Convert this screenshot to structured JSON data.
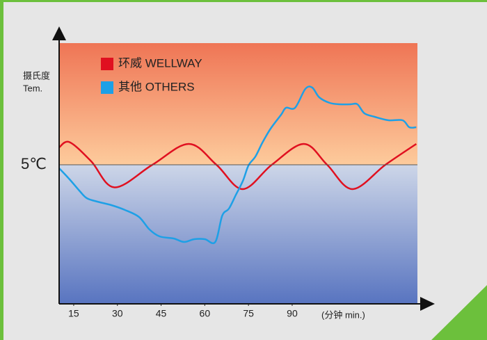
{
  "chart_data": {
    "type": "line",
    "ylabel_cn": "摄氏度",
    "ylabel": "Tem.",
    "xlabel": "(分钟 min.)",
    "xlim": [
      10,
      133
    ],
    "xticks": [
      15,
      30,
      45,
      60,
      75,
      90
    ],
    "ylim": [
      -3,
      12
    ],
    "yticks": [
      {
        "value": 5,
        "label": "5℃"
      }
    ],
    "grid": true,
    "series": [
      {
        "name": "环威 WELLWAY",
        "color": "#e01020",
        "x": [
          10,
          13.6,
          21,
          29,
          42,
          54.5,
          64,
          73,
          83,
          94,
          102,
          110.7,
          122,
          132.6
        ],
        "values": [
          6.0,
          6.3,
          5.2,
          3.7,
          5.0,
          6.2,
          5.0,
          3.6,
          5.0,
          6.2,
          5.0,
          3.6,
          5.0,
          6.2
        ]
      },
      {
        "name": "其他 OTHERS",
        "color": "#1ea0e6",
        "x": [
          10,
          13.6,
          17.1,
          19.5,
          23.1,
          27.9,
          32.6,
          37.4,
          41.0,
          44.5,
          49.3,
          52.9,
          56.4,
          60.0,
          63.6,
          66.0,
          68.3,
          70.7,
          73.1,
          75.0,
          77.4,
          79.8,
          82.6,
          86.2,
          87.9,
          91.0,
          94.5,
          96.9,
          99.3,
          102.9,
          106.4,
          110.0,
          112.4,
          114.8,
          118.3,
          123.1,
          127.9,
          130.2,
          132.6
        ],
        "values": [
          4.8,
          4.16,
          3.48,
          3.08,
          2.88,
          2.68,
          2.4,
          2.0,
          1.28,
          0.88,
          0.76,
          0.56,
          0.72,
          0.72,
          0.56,
          2.08,
          2.48,
          3.28,
          4.08,
          4.96,
          5.48,
          6.28,
          7.08,
          7.88,
          8.28,
          8.28,
          9.36,
          9.44,
          8.88,
          8.56,
          8.48,
          8.48,
          8.48,
          7.96,
          7.76,
          7.56,
          7.56,
          7.16,
          7.16
        ]
      }
    ]
  }
}
